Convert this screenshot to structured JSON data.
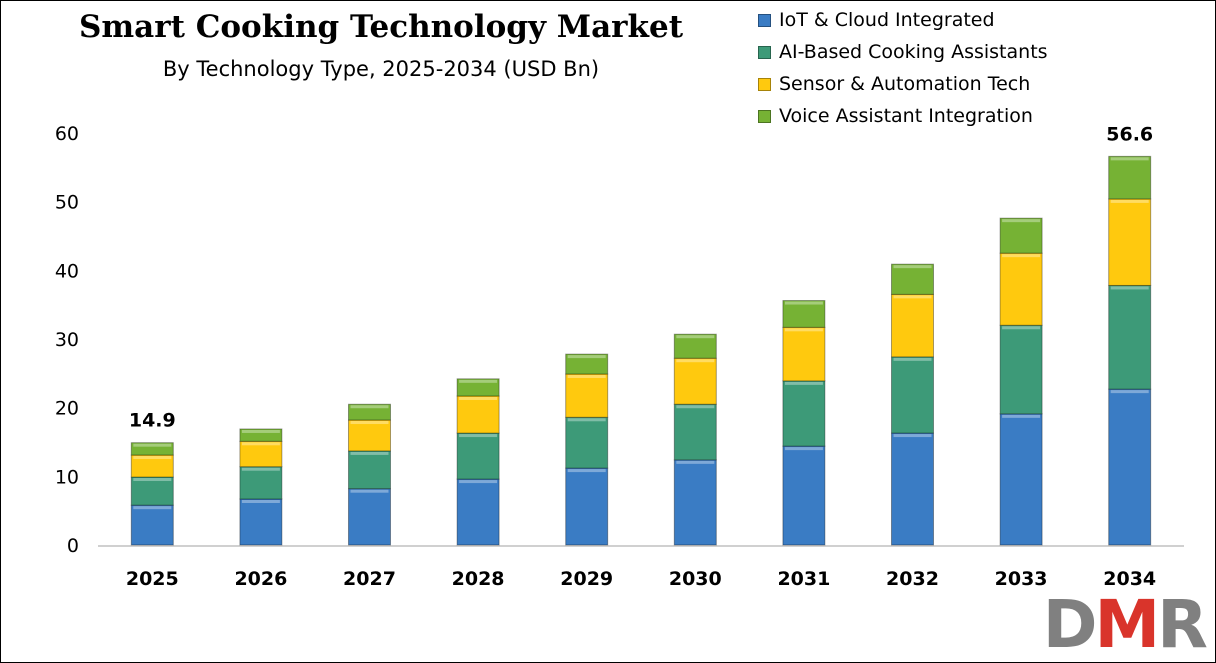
{
  "chart_data": {
    "type": "bar",
    "stacked": true,
    "title": "Smart Cooking Technology Market",
    "subtitle": "By Technology Type, 2025-2034 (USD Bn)",
    "xlabel": "",
    "ylabel": "",
    "ylim": [
      0,
      60
    ],
    "yticks": [
      0,
      10,
      20,
      30,
      40,
      50,
      60
    ],
    "grid": false,
    "legend_position": "top-right",
    "categories": [
      "2025",
      "2026",
      "2027",
      "2028",
      "2029",
      "2030",
      "2031",
      "2032",
      "2033",
      "2034"
    ],
    "series": [
      {
        "name": "IoT & Cloud Integrated",
        "color": "#3a7cc4",
        "values": [
          5.8,
          6.7,
          8.2,
          9.6,
          11.2,
          12.4,
          14.4,
          16.3,
          19.1,
          22.7
        ]
      },
      {
        "name": "AI-Based Cooking Assistants",
        "color": "#3d9a78",
        "values": [
          4.1,
          4.7,
          5.5,
          6.7,
          7.4,
          8.1,
          9.5,
          11.1,
          12.9,
          15.1
        ]
      },
      {
        "name": "Sensor & Automation Tech",
        "color": "#ffc90e",
        "values": [
          3.2,
          3.7,
          4.5,
          5.4,
          6.3,
          6.7,
          7.8,
          9.1,
          10.5,
          12.6
        ]
      },
      {
        "name": "Voice Assistant Integration",
        "color": "#76b234",
        "values": [
          1.8,
          1.8,
          2.3,
          2.5,
          2.9,
          3.5,
          3.9,
          4.4,
          5.1,
          6.2
        ]
      }
    ],
    "annotations": [
      {
        "category": "2025",
        "text": "14.9"
      },
      {
        "category": "2034",
        "text": "56.6"
      }
    ]
  },
  "logo": {
    "text": "DMR",
    "colors": [
      "#808080",
      "#d9342b",
      "#808080"
    ]
  }
}
